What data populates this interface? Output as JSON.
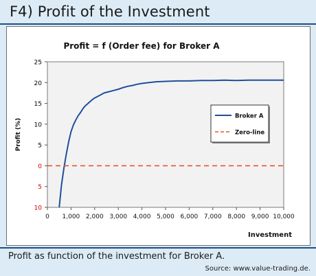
{
  "header": {
    "title": "F4) Profit of the Investment"
  },
  "footer": {
    "caption": "Profit as function of the investment for Broker A.",
    "source": "Source: www.value-trading.de."
  },
  "chart_data": {
    "type": "line",
    "title": "Profit = f (Order fee) for Broker A",
    "xlabel": "Investment",
    "ylabel": "Profit (%)",
    "xlim": [
      0,
      10000
    ],
    "ylim": [
      -10,
      25
    ],
    "x_ticks": [
      0,
      1000,
      2000,
      3000,
      4000,
      5000,
      6000,
      7000,
      8000,
      9000,
      10000
    ],
    "x_tick_labels": [
      "0",
      "1,000",
      "2,000",
      "3,000",
      "4,000",
      "5,000",
      "6,000",
      "7,000",
      "8,000",
      "9,000",
      "10,000"
    ],
    "y_ticks": [
      25,
      20,
      15,
      10,
      5,
      0,
      -5,
      -10
    ],
    "y_tick_labels": [
      "25",
      "20",
      "15",
      "10",
      "5",
      "0",
      "5",
      "10"
    ],
    "y_tick_label_colors": [
      "#000000",
      "#000000",
      "#000000",
      "#000000",
      "#000000",
      "#cc0000",
      "#cc0000",
      "#cc0000"
    ],
    "grid": false,
    "plot_background": "#f2f2f2",
    "legend_position": "right",
    "series": [
      {
        "name": "Broker A",
        "color": "#1f4e9a",
        "style": "solid",
        "x": [
          500,
          600,
          700,
          800,
          900,
          1000,
          1100,
          1200,
          1300,
          1400,
          1500,
          1600,
          1700,
          1800,
          1900,
          2000,
          2200,
          2400,
          2600,
          2800,
          3000,
          3200,
          3400,
          3600,
          3800,
          4000,
          4300,
          4600,
          5000,
          5500,
          6000,
          6500,
          7000,
          7500,
          8000,
          8500,
          9000,
          9500,
          10000
        ],
        "y": [
          -10,
          -4.5,
          -0.5,
          2.8,
          5.8,
          8.2,
          9.8,
          11,
          12,
          12.8,
          13.7,
          14.4,
          14.9,
          15.4,
          15.9,
          16.3,
          16.9,
          17.5,
          17.8,
          18.1,
          18.4,
          18.8,
          19.1,
          19.3,
          19.6,
          19.8,
          20,
          20.2,
          20.3,
          20.4,
          20.4,
          20.5,
          20.5,
          20.6,
          20.5,
          20.6,
          20.6,
          20.6,
          20.6
        ]
      },
      {
        "name": "Zero-line",
        "color": "#e8542a",
        "style": "dashed",
        "x": [
          0,
          10000
        ],
        "y": [
          0,
          0
        ]
      }
    ]
  }
}
